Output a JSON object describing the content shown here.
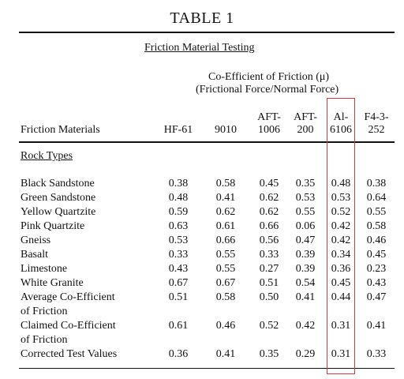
{
  "table": {
    "title": "TABLE 1",
    "subtitle": "Friction Material Testing",
    "coef_line1": "Co-Efficient of Friction (μ)",
    "coef_line2": "(Frictional Force/Normal Force)",
    "row_header": "Friction Materials",
    "section_label": "Rock Types",
    "columns": [
      {
        "line1": "",
        "line2": "HF-61"
      },
      {
        "line1": "",
        "line2": "9010"
      },
      {
        "line1": "AFT-",
        "line2": "1006"
      },
      {
        "line1": "AFT-",
        "line2": "200"
      },
      {
        "line1": "Al-",
        "line2": "6106"
      },
      {
        "line1": "F4-3-",
        "line2": "252"
      }
    ],
    "rows": [
      {
        "label": "Black Sandstone",
        "label2": "",
        "values": [
          "0.38",
          "0.58",
          "0.45",
          "0.35",
          "0.48",
          "0.38"
        ]
      },
      {
        "label": "Green Sandstone",
        "label2": "",
        "values": [
          "0.48",
          "0.41",
          "0.62",
          "0.53",
          "0.53",
          "0.64"
        ]
      },
      {
        "label": "Yellow Quartzite",
        "label2": "",
        "values": [
          "0.59",
          "0.62",
          "0.62",
          "0.55",
          "0.52",
          "0.55"
        ]
      },
      {
        "label": "Pink Quartzite",
        "label2": "",
        "values": [
          "0.63",
          "0.61",
          "0.66",
          "0.06",
          "0.42",
          "0.58"
        ]
      },
      {
        "label": "Gneiss",
        "label2": "",
        "values": [
          "0.53",
          "0.66",
          "0.56",
          "0.47",
          "0.42",
          "0.46"
        ]
      },
      {
        "label": "Basalt",
        "label2": "",
        "values": [
          "0.33",
          "0.55",
          "0.33",
          "0.39",
          "0.34",
          "0.45"
        ]
      },
      {
        "label": "Limestone",
        "label2": "",
        "values": [
          "0.43",
          "0.55",
          "0.27",
          "0.39",
          "0.36",
          "0.23"
        ]
      },
      {
        "label": "White Granite",
        "label2": "",
        "values": [
          "0.67",
          "0.67",
          "0.51",
          "0.54",
          "0.45",
          "0.43"
        ]
      },
      {
        "label": "Average Co-Efficient",
        "label2": "of Friction",
        "values": [
          "0.51",
          "0.58",
          "0.50",
          "0.41",
          "0.44",
          "0.47"
        ]
      },
      {
        "label": "Claimed Co-Efficient",
        "label2": "of Friction",
        "values": [
          "0.61",
          "0.46",
          "0.52",
          "0.42",
          "0.31",
          "0.41"
        ]
      },
      {
        "label": "Corrected Test Values",
        "label2": "",
        "values": [
          "0.36",
          "0.41",
          "0.35",
          "0.29",
          "0.31",
          "0.33"
        ]
      }
    ],
    "highlight_color": "#d23a3a"
  }
}
